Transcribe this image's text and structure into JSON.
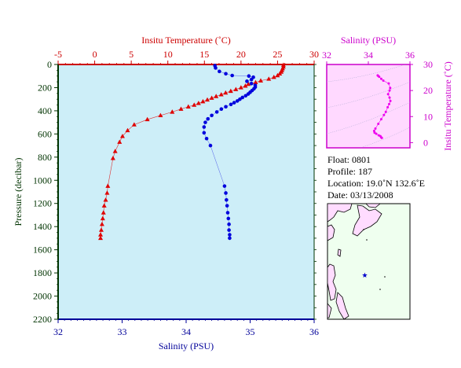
{
  "float_info": {
    "float": "Float:  0801",
    "profile": "Profile:  187",
    "location": "Location:  19.0˚N  132.6˚E",
    "date": "Date:  03/13/2008"
  },
  "footer_note": "",
  "chart_data": [
    {
      "type": "scatter",
      "name": "profile-plot",
      "top_axis": {
        "label": "Insitu Temperature (˚C)",
        "range": [
          -5,
          30
        ],
        "ticks": [
          -5,
          0,
          5,
          10,
          15,
          20,
          25,
          30
        ],
        "color": "#cc0000"
      },
      "bottom_axis": {
        "label": "Salinity (PSU)",
        "range": [
          32,
          36
        ],
        "ticks": [
          32,
          33,
          34,
          35,
          36
        ],
        "color": "#000099"
      },
      "left_axis": {
        "label": "Pressure (decibar)",
        "range": [
          0,
          2200
        ],
        "ticks": [
          0,
          200,
          400,
          600,
          800,
          1000,
          1200,
          1400,
          1600,
          1800,
          2000,
          2200
        ],
        "inverted": true,
        "color": "#003300"
      },
      "background": "#cdeef8",
      "series": [
        {
          "kind": "temperature",
          "color": "#e00000",
          "marker": "triangle",
          "points": [
            [
              25.8,
              5
            ],
            [
              25.8,
              20
            ],
            [
              25.7,
              35
            ],
            [
              25.6,
              50
            ],
            [
              25.5,
              65
            ],
            [
              25.3,
              80
            ],
            [
              25.0,
              95
            ],
            [
              24.5,
              110
            ],
            [
              23.8,
              125
            ],
            [
              22.7,
              140
            ],
            [
              22.0,
              155
            ],
            [
              21.0,
              170
            ],
            [
              20.6,
              185
            ],
            [
              20.0,
              200
            ],
            [
              19.3,
              215
            ],
            [
              18.6,
              230
            ],
            [
              17.9,
              245
            ],
            [
              17.3,
              260
            ],
            [
              16.6,
              275
            ],
            [
              16.0,
              290
            ],
            [
              15.4,
              305
            ],
            [
              14.8,
              320
            ],
            [
              14.2,
              335
            ],
            [
              13.6,
              350
            ],
            [
              12.8,
              365
            ],
            [
              11.8,
              385
            ],
            [
              10.6,
              410
            ],
            [
              9.0,
              440
            ],
            [
              7.2,
              475
            ],
            [
              5.4,
              520
            ],
            [
              4.5,
              570
            ],
            [
              3.8,
              620
            ],
            [
              3.4,
              670
            ],
            [
              2.8,
              750
            ],
            [
              2.5,
              810
            ],
            [
              1.8,
              1050
            ],
            [
              1.7,
              1110
            ],
            [
              1.5,
              1170
            ],
            [
              1.3,
              1220
            ],
            [
              1.2,
              1280
            ],
            [
              1.1,
              1330
            ],
            [
              1.0,
              1380
            ],
            [
              0.9,
              1430
            ],
            [
              0.8,
              1470
            ],
            [
              0.8,
              1500
            ]
          ]
        },
        {
          "kind": "salinity",
          "color": "#0000dd",
          "marker": "circle",
          "points": [
            [
              34.45,
              10
            ],
            [
              34.46,
              30
            ],
            [
              34.52,
              60
            ],
            [
              34.62,
              80
            ],
            [
              34.72,
              95
            ],
            [
              34.98,
              100
            ],
            [
              35.05,
              110
            ],
            [
              35.02,
              130
            ],
            [
              34.95,
              145
            ],
            [
              35.02,
              165
            ],
            [
              35.08,
              180
            ],
            [
              35.08,
              195
            ],
            [
              35.06,
              210
            ],
            [
              35.03,
              225
            ],
            [
              35.0,
              240
            ],
            [
              34.97,
              255
            ],
            [
              34.93,
              270
            ],
            [
              34.88,
              285
            ],
            [
              34.84,
              300
            ],
            [
              34.8,
              315
            ],
            [
              34.75,
              330
            ],
            [
              34.7,
              345
            ],
            [
              34.62,
              365
            ],
            [
              34.55,
              385
            ],
            [
              34.48,
              410
            ],
            [
              34.4,
              440
            ],
            [
              34.34,
              470
            ],
            [
              34.3,
              500
            ],
            [
              34.28,
              540
            ],
            [
              34.28,
              590
            ],
            [
              34.32,
              640
            ],
            [
              34.38,
              700
            ],
            [
              34.6,
              1050
            ],
            [
              34.62,
              1110
            ],
            [
              34.63,
              1170
            ],
            [
              34.64,
              1220
            ],
            [
              34.65,
              1280
            ],
            [
              34.66,
              1330
            ],
            [
              34.67,
              1380
            ],
            [
              34.67,
              1430
            ],
            [
              34.68,
              1470
            ],
            [
              34.68,
              1500
            ]
          ]
        }
      ]
    },
    {
      "type": "scatter",
      "name": "ts-diagram",
      "x_axis": {
        "label": "Salinity (PSU)",
        "range": [
          32,
          36
        ],
        "ticks": [
          32,
          34,
          36
        ],
        "color": "#cc00cc"
      },
      "y_axis": {
        "label": "Insitu Temperature (˚C)",
        "range": [
          -2,
          30
        ],
        "ticks": [
          0,
          10,
          20,
          30
        ],
        "color": "#cc00cc"
      },
      "background": "#ffd9ff",
      "marker_color": "#ee00ee",
      "points": [
        [
          34.45,
          25.8
        ],
        [
          34.46,
          25.7
        ],
        [
          34.52,
          25.3
        ],
        [
          34.62,
          24.5
        ],
        [
          34.72,
          23.8
        ],
        [
          34.98,
          22.7
        ],
        [
          35.05,
          21.0
        ],
        [
          35.02,
          20.0
        ],
        [
          34.95,
          18.6
        ],
        [
          35.02,
          17.3
        ],
        [
          35.06,
          16.0
        ],
        [
          35.0,
          14.8
        ],
        [
          34.93,
          13.6
        ],
        [
          34.84,
          11.8
        ],
        [
          34.75,
          10.6
        ],
        [
          34.62,
          9.0
        ],
        [
          34.48,
          7.2
        ],
        [
          34.34,
          5.4
        ],
        [
          34.28,
          4.5
        ],
        [
          34.3,
          3.8
        ],
        [
          34.38,
          3.4
        ],
        [
          34.5,
          2.8
        ],
        [
          34.58,
          2.5
        ],
        [
          34.62,
          2.0
        ],
        [
          34.65,
          1.8
        ]
      ]
    },
    {
      "type": "map",
      "name": "location-map",
      "land_color": "#ffdcff",
      "sea_color": "#efffef",
      "marker": {
        "lat": 19.0,
        "lon": 132.6,
        "color": "#0000cc",
        "symbol": "star"
      }
    }
  ]
}
